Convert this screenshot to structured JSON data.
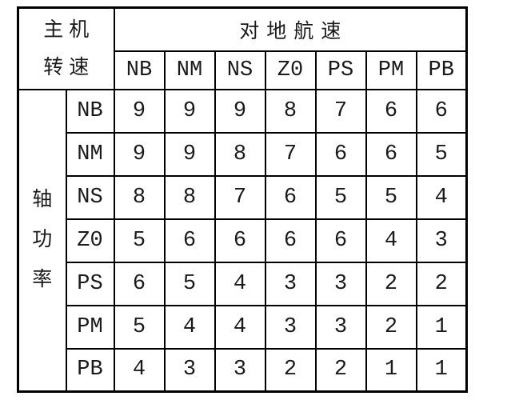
{
  "table": {
    "corner": {
      "line1": "主机",
      "line2": "转速"
    },
    "column_group_label": "对地航速",
    "columns": [
      "NB",
      "NM",
      "NS",
      "Z0",
      "PS",
      "PM",
      "PB"
    ],
    "row_group_label": "轴功率",
    "row_group_label_chars": [
      "轴",
      "功",
      "率"
    ],
    "rows": [
      {
        "label": "NB",
        "values": [
          "9",
          "9",
          "9",
          "8",
          "7",
          "6",
          "6"
        ]
      },
      {
        "label": "NM",
        "values": [
          "9",
          "9",
          "8",
          "7",
          "6",
          "6",
          "5"
        ]
      },
      {
        "label": "NS",
        "values": [
          "8",
          "8",
          "7",
          "6",
          "5",
          "5",
          "4"
        ]
      },
      {
        "label": "Z0",
        "values": [
          "5",
          "6",
          "6",
          "6",
          "6",
          "4",
          "3"
        ]
      },
      {
        "label": "PS",
        "values": [
          "6",
          "5",
          "4",
          "3",
          "3",
          "2",
          "2"
        ]
      },
      {
        "label": "PM",
        "values": [
          "5",
          "4",
          "4",
          "3",
          "3",
          "2",
          "1"
        ]
      },
      {
        "label": "PB",
        "values": [
          "4",
          "3",
          "3",
          "2",
          "2",
          "1",
          "1"
        ]
      }
    ]
  },
  "colors": {
    "border": "#000000",
    "text": "#1a1a1a",
    "background": "#ffffff"
  }
}
